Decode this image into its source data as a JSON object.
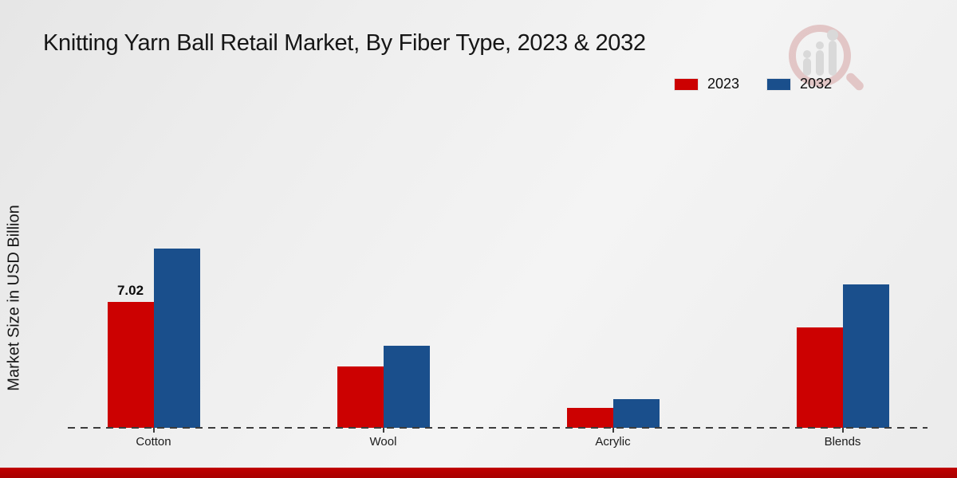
{
  "page": {
    "title": "Knitting Yarn Ball Retail Market, By Fiber Type, 2023 & 2032",
    "ylabel": "Market Size in USD Billion"
  },
  "theme": {
    "accent_red": "#cc0101",
    "accent_blue": "#1a4f8c",
    "footer_band_red": "#c00000",
    "axis_color": "#3c3c3c"
  },
  "watermark": {
    "name": "market-research-magnifier-logo"
  },
  "chart_data": {
    "type": "bar",
    "title": "Knitting Yarn Ball Retail Market, By Fiber Type, 2023 & 2032",
    "xlabel": "",
    "ylabel": "Market Size in USD Billion",
    "categories": [
      "Cotton",
      "Wool",
      "Acrylic",
      "Blends"
    ],
    "series": [
      {
        "name": "2023",
        "color": "#cc0101",
        "values": [
          7.02,
          3.42,
          1.1,
          5.6
        ]
      },
      {
        "name": "2032",
        "color": "#1a4f8c",
        "values": [
          10.0,
          4.6,
          1.6,
          8.0
        ]
      }
    ],
    "data_labels": [
      {
        "series": "2023",
        "category": "Cotton",
        "text": "7.02"
      }
    ],
    "ylim": [
      0,
      10.5
    ],
    "grid": false,
    "legend_position": "top-right",
    "baseline_style": "dashed"
  }
}
